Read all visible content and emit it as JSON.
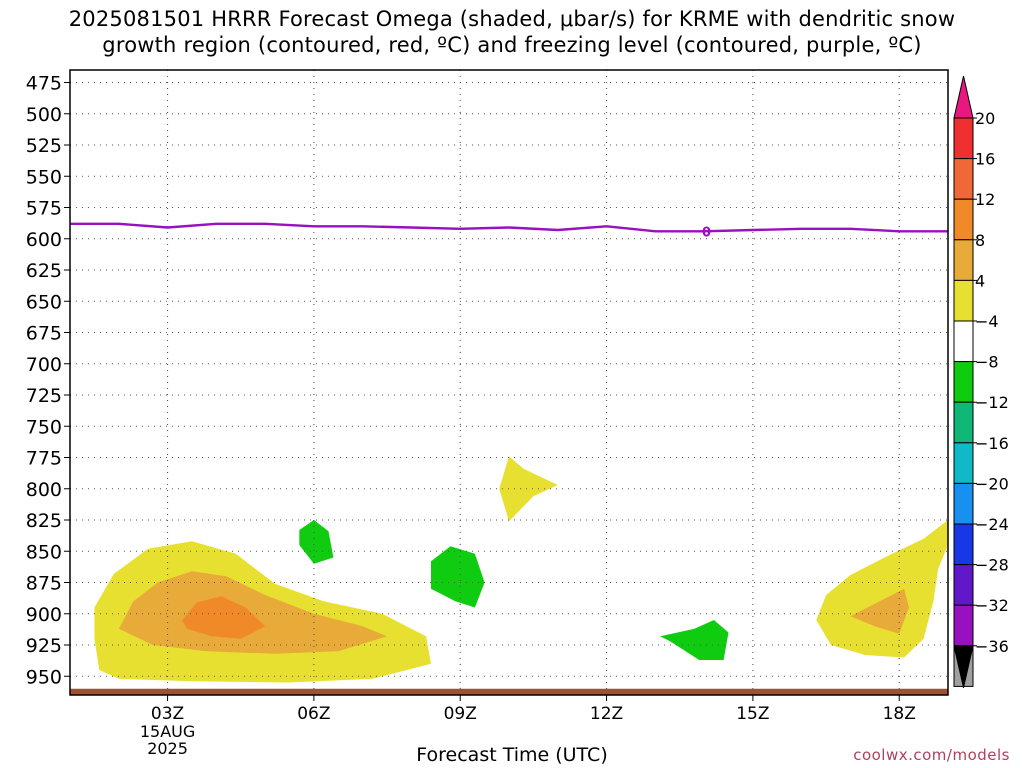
{
  "title_line1": "2025081501 HRRR Forecast Omega (shaded, μbar/s) for KRME with dendritic snow",
  "title_line2": "growth region (contoured, red, ºC) and freezing level (contoured, purple, ºC)",
  "credit": "coolwx.com/models",
  "chart_data": {
    "type": "heatmap",
    "title": "2025081501 HRRR Forecast Omega (shaded, μbar/s) for KRME with dendritic snow growth region (contoured, red, ºC) and freezing level (contoured, purple, ºC)",
    "xlabel": "Forecast Time (UTC)",
    "ylabel": "",
    "x_ticks": [
      "03Z",
      "06Z",
      "09Z",
      "12Z",
      "15Z",
      "18Z"
    ],
    "x_tick_hours": [
      3,
      6,
      9,
      12,
      15,
      18
    ],
    "x_date_label": [
      "15AUG",
      "2025"
    ],
    "xlim": [
      1,
      19
    ],
    "y_ticks": [
      475,
      500,
      525,
      550,
      575,
      600,
      625,
      650,
      675,
      700,
      725,
      750,
      775,
      800,
      825,
      850,
      875,
      900,
      925,
      950
    ],
    "ylim_hPa": [
      465,
      965
    ],
    "grid": true,
    "colorbar": {
      "labels": [
        "20",
        "16",
        "12",
        "8",
        "4",
        "−4",
        "−8",
        "−12",
        "−16",
        "−20",
        "−24",
        "−28",
        "−32",
        "−36"
      ],
      "colors": [
        "#e81880",
        "#f03030",
        "#f06838",
        "#f08a28",
        "#e8aa38",
        "#e8e030",
        "#ffffff",
        "#10cc10",
        "#10b878",
        "#10b8c8",
        "#1890f0",
        "#1838e8",
        "#6018c8",
        "#9810c0",
        "#a0a0a0",
        "#000000"
      ]
    },
    "freezing_level": {
      "label": "0",
      "color": "#9810c0",
      "x_hours": [
        1,
        2,
        3,
        4,
        5,
        6,
        7,
        8,
        9,
        10,
        11,
        12,
        13,
        14,
        15,
        16,
        17,
        18,
        19
      ],
      "p_hPa": [
        588,
        588,
        591,
        588,
        588,
        590,
        590,
        591,
        592,
        591,
        593,
        590,
        594,
        594,
        593,
        592,
        592,
        594,
        594
      ]
    },
    "omega_regions": [
      {
        "level": "4 to 8",
        "color": "#e8e030",
        "points": [
          [
            1.6,
            945
          ],
          [
            1.5,
            920
          ],
          [
            1.5,
            895
          ],
          [
            1.9,
            868
          ],
          [
            2.6,
            848
          ],
          [
            3.5,
            842
          ],
          [
            4.4,
            852
          ],
          [
            5.2,
            876
          ],
          [
            6.2,
            890
          ],
          [
            7.4,
            900
          ],
          [
            8.3,
            918
          ],
          [
            8.4,
            940
          ],
          [
            7.2,
            952
          ],
          [
            5.5,
            955
          ],
          [
            3.5,
            954
          ],
          [
            2.0,
            952
          ]
        ]
      },
      {
        "level": "8 to 12",
        "color": "#e8aa38",
        "points": [
          [
            2.0,
            912
          ],
          [
            2.3,
            890
          ],
          [
            2.8,
            875
          ],
          [
            3.5,
            866
          ],
          [
            4.2,
            870
          ],
          [
            5.0,
            885
          ],
          [
            6.0,
            900
          ],
          [
            7.0,
            910
          ],
          [
            7.5,
            918
          ],
          [
            6.5,
            930
          ],
          [
            5.2,
            932
          ],
          [
            3.8,
            930
          ],
          [
            2.7,
            925
          ]
        ]
      },
      {
        "level": "12 to 16",
        "color": "#f08a28",
        "points": [
          [
            3.3,
            905
          ],
          [
            3.6,
            891
          ],
          [
            4.1,
            886
          ],
          [
            4.6,
            895
          ],
          [
            5.0,
            910
          ],
          [
            4.5,
            920
          ],
          [
            3.9,
            918
          ],
          [
            3.4,
            912
          ]
        ]
      },
      {
        "level": "4 to 8",
        "color": "#e8e030",
        "points": [
          [
            9.8,
            800
          ],
          [
            10.0,
            774
          ],
          [
            10.3,
            784
          ],
          [
            11.0,
            797
          ],
          [
            10.5,
            806
          ],
          [
            10.0,
            826
          ]
        ]
      },
      {
        "level": "4 to 8",
        "color": "#e8e030",
        "points": [
          [
            16.3,
            905
          ],
          [
            16.5,
            885
          ],
          [
            17.0,
            869
          ],
          [
            17.8,
            853
          ],
          [
            18.5,
            840
          ],
          [
            19.0,
            825
          ],
          [
            19.0,
            845
          ],
          [
            18.8,
            864
          ],
          [
            18.7,
            890
          ],
          [
            18.5,
            920
          ],
          [
            18.1,
            935
          ],
          [
            17.3,
            933
          ],
          [
            16.6,
            925
          ]
        ]
      },
      {
        "level": "8 to 12",
        "color": "#e8aa38",
        "points": [
          [
            17.0,
            902
          ],
          [
            17.6,
            890
          ],
          [
            18.1,
            880
          ],
          [
            18.2,
            895
          ],
          [
            18.0,
            916
          ],
          [
            17.5,
            910
          ]
        ]
      },
      {
        "level": "-4 to -8",
        "color": "#10cc10",
        "points": [
          [
            5.7,
            845
          ],
          [
            5.7,
            833
          ],
          [
            6.0,
            825
          ],
          [
            6.3,
            834
          ],
          [
            6.4,
            855
          ],
          [
            6.0,
            860
          ]
        ]
      },
      {
        "level": "-4 to -8",
        "color": "#10cc10",
        "points": [
          [
            8.4,
            880
          ],
          [
            8.4,
            858
          ],
          [
            8.8,
            846
          ],
          [
            9.3,
            852
          ],
          [
            9.5,
            875
          ],
          [
            9.3,
            895
          ],
          [
            8.9,
            890
          ]
        ]
      },
      {
        "level": "-4 to -8",
        "color": "#10cc10",
        "points": [
          [
            13.1,
            918
          ],
          [
            13.8,
            912
          ],
          [
            14.2,
            905
          ],
          [
            14.5,
            915
          ],
          [
            14.4,
            937
          ],
          [
            13.9,
            937
          ],
          [
            13.3,
            922
          ]
        ]
      }
    ],
    "ground_band": {
      "color": "#a0522d",
      "label": "terrain"
    }
  }
}
